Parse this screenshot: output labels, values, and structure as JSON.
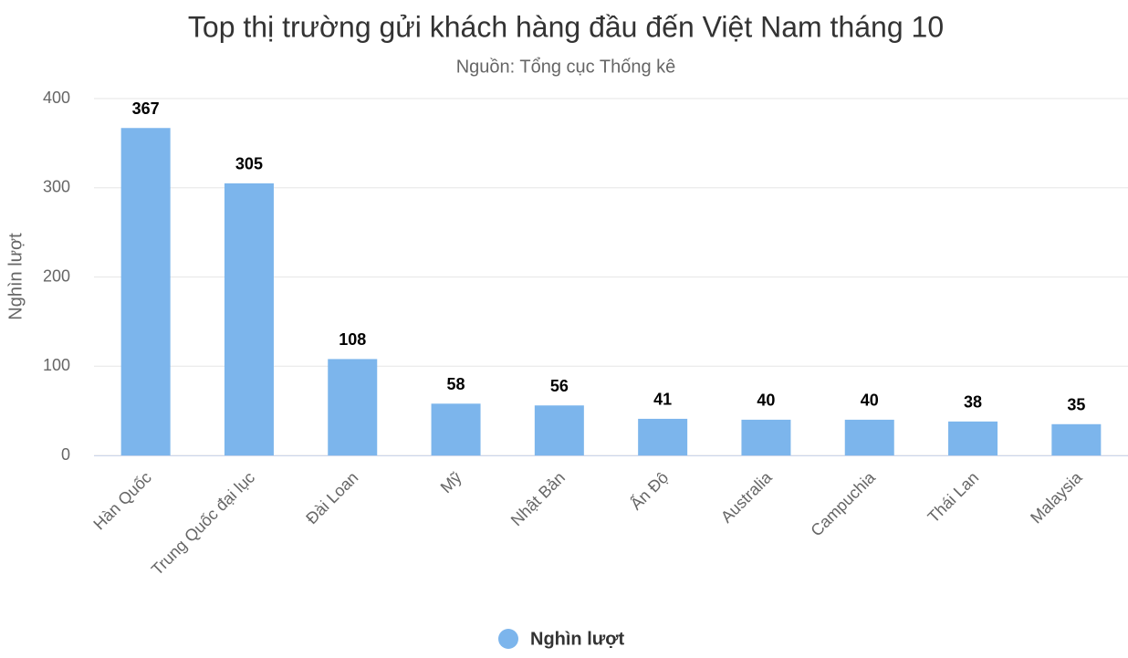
{
  "chart_data": {
    "type": "bar",
    "title": "Top thị trường gửi khách hàng đầu đến Việt Nam tháng 10",
    "subtitle": "Nguồn: Tổng cục Thống kê",
    "y_axis_label": "Nghìn lượt",
    "categories": [
      "Hàn Quốc",
      "Trung Quốc đại lục",
      "Đài Loan",
      "Mỹ",
      "Nhật Bản",
      "Ấn Độ",
      "Australia",
      "Campuchia",
      "Thái Lan",
      "Malaysia"
    ],
    "series": [
      {
        "name": "Nghìn lượt",
        "color": "#7cb5ec",
        "values": [
          367,
          305,
          108,
          58,
          56,
          41,
          40,
          40,
          38,
          35
        ]
      }
    ],
    "ylim": [
      0,
      400
    ],
    "yticks": [
      0,
      100,
      200,
      300,
      400
    ],
    "grid": true,
    "legend": "bottom"
  }
}
